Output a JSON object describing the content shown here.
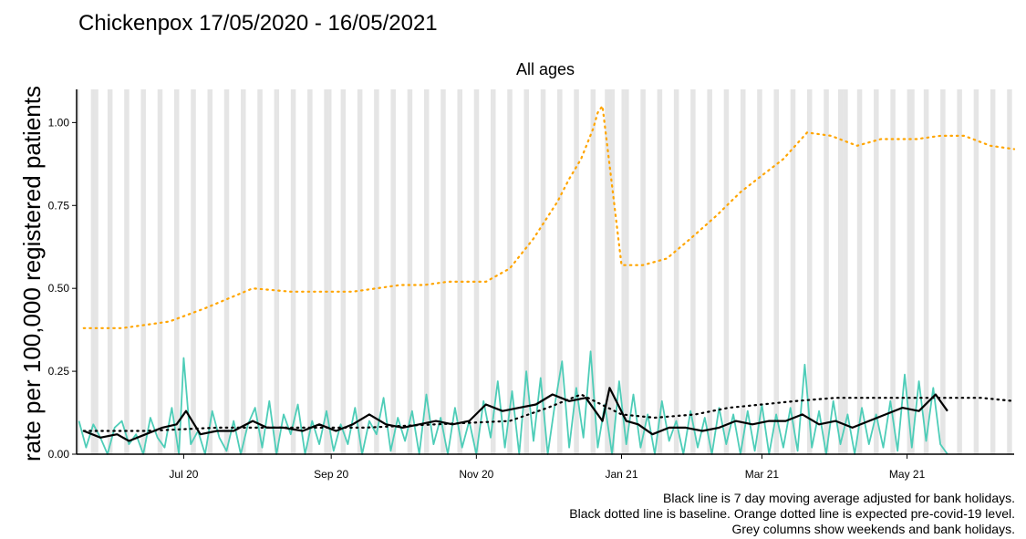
{
  "chart_data": {
    "type": "line",
    "title": "Chickenpox 17/05/2020 - 16/05/2021",
    "subtitle": "All ages",
    "ylabel": "rate per 100,000 registered patients",
    "xlabel": "",
    "x_range": [
      "2020-05-17",
      "2021-06-15"
    ],
    "ylim": [
      0,
      1.1
    ],
    "yticks": [
      0.0,
      0.25,
      0.5,
      0.75,
      1.0
    ],
    "ytick_labels": [
      "0.00",
      "0.25",
      "0.50",
      "0.75",
      "1.00"
    ],
    "xticks": [
      "2020-07-01",
      "2020-09-01",
      "2020-11-01",
      "2021-01-01",
      "2021-03-01",
      "2021-05-01"
    ],
    "xtick_labels": [
      "Jul 20",
      "Sep 20",
      "Nov 20",
      "Jan 21",
      "Mar 21",
      "May 21"
    ],
    "grid": false,
    "shading": {
      "description_color": "#e5e5e5",
      "bank_holidays": [
        "2020-05-25",
        "2020-08-31",
        "2020-12-25",
        "2020-12-28",
        "2021-01-01",
        "2021-04-02",
        "2021-04-05",
        "2021-05-03"
      ]
    },
    "colors": {
      "daily": "#4ecdb8",
      "moving_average": "#000000",
      "baseline": "#000000",
      "expected": "#ffa500"
    },
    "series": [
      {
        "key": "expected",
        "style": "dotted",
        "dates": [
          "2020-05-20",
          "2020-06-05",
          "2020-06-15",
          "2020-06-25",
          "2020-07-10",
          "2020-07-20",
          "2020-07-30",
          "2020-08-15",
          "2020-08-31",
          "2020-09-10",
          "2020-09-20",
          "2020-09-30",
          "2020-10-10",
          "2020-10-20",
          "2020-10-25",
          "2020-11-05",
          "2020-11-15",
          "2020-11-25",
          "2020-12-05",
          "2020-12-10",
          "2020-12-15",
          "2020-12-20",
          "2020-12-22",
          "2020-12-24",
          "2020-12-28",
          "2021-01-01",
          "2021-01-10",
          "2021-01-20",
          "2021-01-30",
          "2021-02-10",
          "2021-02-20",
          "2021-03-01",
          "2021-03-10",
          "2021-03-20",
          "2021-03-30",
          "2021-04-10",
          "2021-04-20",
          "2021-05-05",
          "2021-05-15",
          "2021-05-25",
          "2021-06-05",
          "2021-06-15"
        ],
        "values": [
          0.38,
          0.38,
          0.39,
          0.4,
          0.44,
          0.47,
          0.5,
          0.49,
          0.49,
          0.49,
          0.5,
          0.51,
          0.51,
          0.52,
          0.52,
          0.52,
          0.56,
          0.65,
          0.76,
          0.83,
          0.89,
          0.98,
          1.03,
          1.05,
          0.81,
          0.57,
          0.57,
          0.59,
          0.65,
          0.72,
          0.79,
          0.84,
          0.89,
          0.97,
          0.96,
          0.93,
          0.95,
          0.95,
          0.96,
          0.96,
          0.93,
          0.92
        ]
      },
      {
        "key": "baseline",
        "style": "dotted",
        "dates": [
          "2020-05-20",
          "2020-06-15",
          "2020-07-15",
          "2020-08-15",
          "2020-09-15",
          "2020-10-15",
          "2020-11-15",
          "2020-12-01",
          "2020-12-15",
          "2021-01-01",
          "2021-01-15",
          "2021-02-01",
          "2021-02-15",
          "2021-03-01",
          "2021-03-15",
          "2021-04-01",
          "2021-04-15",
          "2021-05-01",
          "2021-05-15",
          "2021-06-01",
          "2021-06-15"
        ],
        "values": [
          0.07,
          0.07,
          0.08,
          0.08,
          0.08,
          0.09,
          0.1,
          0.14,
          0.18,
          0.12,
          0.11,
          0.12,
          0.14,
          0.15,
          0.16,
          0.17,
          0.17,
          0.17,
          0.17,
          0.17,
          0.16
        ]
      },
      {
        "key": "moving_average",
        "style": "solid",
        "dates": [
          "2020-05-20",
          "2020-05-27",
          "2020-06-03",
          "2020-06-08",
          "2020-06-15",
          "2020-06-22",
          "2020-06-28",
          "2020-07-02",
          "2020-07-08",
          "2020-07-15",
          "2020-07-22",
          "2020-07-30",
          "2020-08-05",
          "2020-08-12",
          "2020-08-20",
          "2020-08-27",
          "2020-09-03",
          "2020-09-10",
          "2020-09-17",
          "2020-09-24",
          "2020-10-01",
          "2020-10-08",
          "2020-10-15",
          "2020-10-22",
          "2020-10-29",
          "2020-11-05",
          "2020-11-12",
          "2020-11-19",
          "2020-11-26",
          "2020-12-03",
          "2020-12-10",
          "2020-12-17",
          "2020-12-24",
          "2020-12-27",
          "2021-01-03",
          "2021-01-08",
          "2021-01-14",
          "2021-01-21",
          "2021-01-28",
          "2021-02-04",
          "2021-02-11",
          "2021-02-18",
          "2021-02-25",
          "2021-03-04",
          "2021-03-11",
          "2021-03-18",
          "2021-03-25",
          "2021-04-01",
          "2021-04-08",
          "2021-04-15",
          "2021-04-22",
          "2021-04-29",
          "2021-05-06",
          "2021-05-13",
          "2021-05-18"
        ],
        "values": [
          0.07,
          0.05,
          0.06,
          0.04,
          0.06,
          0.08,
          0.09,
          0.13,
          0.06,
          0.07,
          0.07,
          0.1,
          0.08,
          0.08,
          0.07,
          0.09,
          0.07,
          0.09,
          0.12,
          0.09,
          0.08,
          0.09,
          0.1,
          0.09,
          0.1,
          0.15,
          0.13,
          0.14,
          0.15,
          0.18,
          0.16,
          0.17,
          0.1,
          0.2,
          0.1,
          0.09,
          0.06,
          0.08,
          0.08,
          0.07,
          0.08,
          0.1,
          0.09,
          0.1,
          0.1,
          0.12,
          0.09,
          0.1,
          0.08,
          0.1,
          0.12,
          0.14,
          0.13,
          0.18,
          0.13
        ]
      },
      {
        "key": "daily",
        "style": "solid",
        "dates": [
          "2020-05-18",
          "2020-05-21",
          "2020-05-24",
          "2020-05-27",
          "2020-05-30",
          "2020-06-02",
          "2020-06-05",
          "2020-06-08",
          "2020-06-11",
          "2020-06-14",
          "2020-06-17",
          "2020-06-20",
          "2020-06-23",
          "2020-06-26",
          "2020-06-29",
          "2020-07-01",
          "2020-07-04",
          "2020-07-07",
          "2020-07-10",
          "2020-07-13",
          "2020-07-16",
          "2020-07-19",
          "2020-07-22",
          "2020-07-25",
          "2020-07-28",
          "2020-07-31",
          "2020-08-03",
          "2020-08-06",
          "2020-08-09",
          "2020-08-12",
          "2020-08-15",
          "2020-08-18",
          "2020-08-21",
          "2020-08-24",
          "2020-08-27",
          "2020-08-30",
          "2020-09-02",
          "2020-09-05",
          "2020-09-08",
          "2020-09-11",
          "2020-09-14",
          "2020-09-17",
          "2020-09-20",
          "2020-09-23",
          "2020-09-26",
          "2020-09-29",
          "2020-10-02",
          "2020-10-05",
          "2020-10-08",
          "2020-10-11",
          "2020-10-14",
          "2020-10-17",
          "2020-10-20",
          "2020-10-23",
          "2020-10-26",
          "2020-10-29",
          "2020-11-01",
          "2020-11-04",
          "2020-11-07",
          "2020-11-10",
          "2020-11-13",
          "2020-11-16",
          "2020-11-19",
          "2020-11-22",
          "2020-11-25",
          "2020-11-28",
          "2020-12-01",
          "2020-12-04",
          "2020-12-07",
          "2020-12-10",
          "2020-12-13",
          "2020-12-16",
          "2020-12-19",
          "2020-12-22",
          "2020-12-25",
          "2020-12-28",
          "2020-12-31",
          "2021-01-03",
          "2021-01-06",
          "2021-01-09",
          "2021-01-12",
          "2021-01-15",
          "2021-01-18",
          "2021-01-21",
          "2021-01-24",
          "2021-01-27",
          "2021-01-30",
          "2021-02-02",
          "2021-02-05",
          "2021-02-08",
          "2021-02-11",
          "2021-02-14",
          "2021-02-17",
          "2021-02-20",
          "2021-02-23",
          "2021-02-26",
          "2021-03-01",
          "2021-03-04",
          "2021-03-07",
          "2021-03-10",
          "2021-03-13",
          "2021-03-16",
          "2021-03-19",
          "2021-03-22",
          "2021-03-25",
          "2021-03-28",
          "2021-03-31",
          "2021-04-03",
          "2021-04-06",
          "2021-04-09",
          "2021-04-12",
          "2021-04-15",
          "2021-04-18",
          "2021-04-21",
          "2021-04-24",
          "2021-04-27",
          "2021-04-30",
          "2021-05-03",
          "2021-05-06",
          "2021-05-09",
          "2021-05-12",
          "2021-05-15",
          "2021-05-18"
        ],
        "values": [
          0.1,
          0.02,
          0.09,
          0.05,
          0.0,
          0.08,
          0.1,
          0.03,
          0.06,
          0.0,
          0.11,
          0.05,
          0.02,
          0.14,
          0.0,
          0.29,
          0.03,
          0.07,
          0.0,
          0.13,
          0.05,
          0.01,
          0.1,
          0.0,
          0.09,
          0.14,
          0.02,
          0.16,
          0.0,
          0.12,
          0.06,
          0.15,
          0.0,
          0.1,
          0.03,
          0.13,
          0.01,
          0.09,
          0.03,
          0.14,
          0.0,
          0.1,
          0.06,
          0.17,
          0.01,
          0.11,
          0.04,
          0.13,
          0.0,
          0.18,
          0.03,
          0.11,
          0.0,
          0.14,
          0.02,
          0.1,
          0.0,
          0.16,
          0.05,
          0.22,
          0.02,
          0.19,
          0.0,
          0.25,
          0.04,
          0.23,
          0.0,
          0.15,
          0.28,
          0.02,
          0.2,
          0.05,
          0.31,
          0.02,
          0.15,
          0.0,
          0.22,
          0.03,
          0.18,
          0.02,
          0.12,
          0.0,
          0.16,
          0.04,
          0.1,
          0.0,
          0.13,
          0.02,
          0.11,
          0.0,
          0.14,
          0.03,
          0.12,
          0.0,
          0.13,
          0.01,
          0.15,
          0.0,
          0.12,
          0.02,
          0.14,
          0.01,
          0.27,
          0.02,
          0.13,
          0.0,
          0.16,
          0.03,
          0.12,
          0.0,
          0.14,
          0.03,
          0.12,
          0.02,
          0.16,
          0.01,
          0.24,
          0.02,
          0.22,
          0.04,
          0.2,
          0.03,
          0.0
        ]
      }
    ],
    "footnotes": [
      "Black line is 7 day moving average adjusted for bank holidays.",
      "Black dotted line is baseline. Orange dotted line is expected pre-covid-19 level.",
      "Grey columns show weekends and bank holidays."
    ]
  }
}
